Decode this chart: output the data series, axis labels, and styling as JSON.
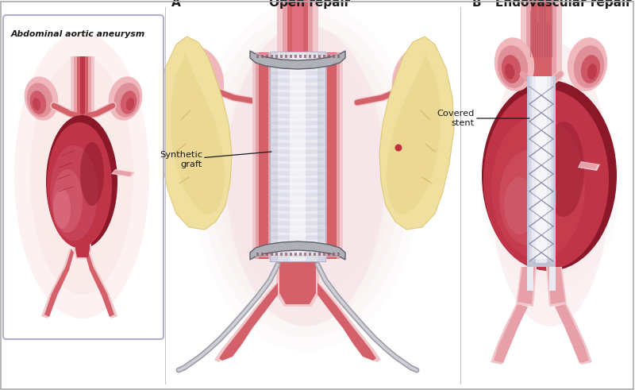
{
  "bg_color": "#f5eaea",
  "title_A": "A",
  "title_open": "Open repair",
  "title_B": "B",
  "title_endo": "Endovascular repair",
  "label_aneurysm": "Abdominal aortic aneurysm",
  "label_graft": "Synthetic\ngraft",
  "label_stent": "Covered\nstent",
  "border_color": "#b0b0c8",
  "text_color": "#1a1a1a",
  "aorta_red": "#c03448",
  "aorta_med": "#d4606a",
  "aorta_light": "#e8a0a8",
  "aorta_pale": "#f0c8cc",
  "aneurysm_dark": "#8a1828",
  "kidney_dark": "#b83040",
  "kidney_mid": "#cc5060",
  "kidney_light": "#e09098",
  "kidney_pale": "#f0b8bc",
  "graft_white": "#f0f0f5",
  "graft_mid": "#d8d8e8",
  "graft_dark": "#b0b0c8",
  "tissue_light": "#f0e0a0",
  "tissue_mid": "#e0c878",
  "tissue_dark": "#c8a850",
  "tissue_shadow": "#d0b870",
  "stent_white": "#eaeaf2",
  "stent_mid": "#c8c8dc",
  "stent_line": "#9090b0",
  "clamp_light": "#a0a0a8",
  "clamp_dark": "#606068",
  "retractor_color": "#909098",
  "body_bg_mid": "#f5e0e4",
  "body_bg_right": "#f5dce0",
  "skin_pale": "#f8e8e8",
  "skin_pink": "#f0d0d4"
}
